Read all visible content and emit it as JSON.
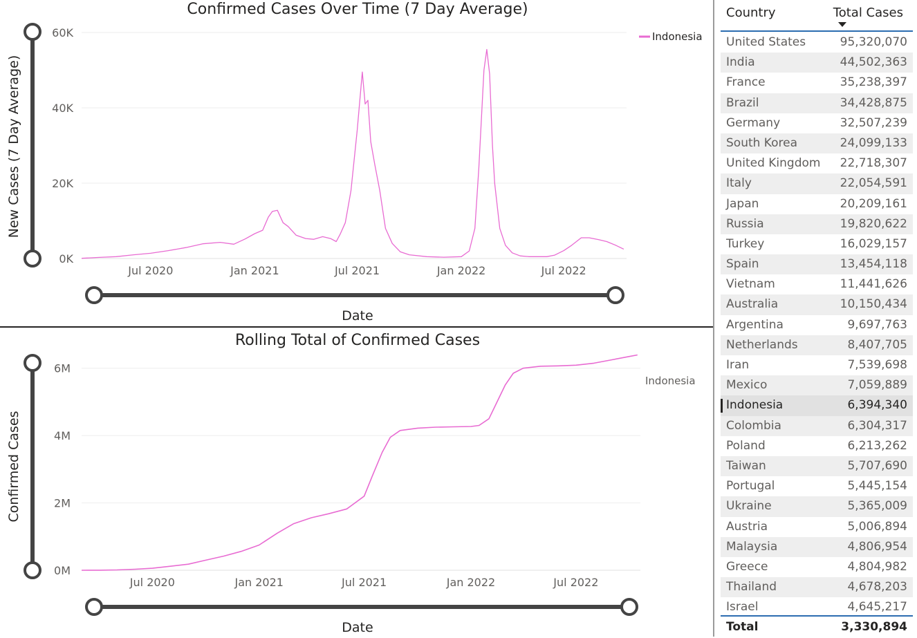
{
  "chart_data": [
    {
      "type": "line",
      "title": "Confirmed Cases Over Time (7 Day Average)",
      "xlabel": "Date",
      "ylabel": "New Cases (7 Day Average)",
      "x_ticks": [
        "Jul 2020",
        "Jan 2021",
        "Jul 2021",
        "Jan 2022",
        "Jul 2022"
      ],
      "y_ticks": [
        "0K",
        "20K",
        "40K",
        "60K"
      ],
      "ylim": [
        0,
        60000
      ],
      "xlim": [
        "2020-03-01",
        "2022-10-20"
      ],
      "legend": {
        "position": "top-right",
        "entries": [
          "Indonesia"
        ]
      },
      "grid": true,
      "series": [
        {
          "name": "Indonesia",
          "color": "#e86bd2",
          "x": [
            "2020-03-01",
            "2020-04-01",
            "2020-05-01",
            "2020-06-01",
            "2020-07-01",
            "2020-08-01",
            "2020-09-01",
            "2020-10-01",
            "2020-11-01",
            "2020-11-25",
            "2020-12-15",
            "2021-01-01",
            "2021-01-15",
            "2021-01-25",
            "2021-02-01",
            "2021-02-10",
            "2021-02-20",
            "2021-03-01",
            "2021-03-15",
            "2021-04-01",
            "2021-04-15",
            "2021-05-01",
            "2021-05-15",
            "2021-05-25",
            "2021-06-01",
            "2021-06-10",
            "2021-06-20",
            "2021-07-01",
            "2021-07-10",
            "2021-07-15",
            "2021-07-20",
            "2021-07-25",
            "2021-08-01",
            "2021-08-10",
            "2021-08-20",
            "2021-09-01",
            "2021-09-15",
            "2021-10-01",
            "2021-11-01",
            "2021-12-01",
            "2022-01-01",
            "2022-01-15",
            "2022-01-25",
            "2022-02-01",
            "2022-02-10",
            "2022-02-15",
            "2022-02-20",
            "2022-02-25",
            "2022-03-01",
            "2022-03-10",
            "2022-03-20",
            "2022-04-01",
            "2022-04-15",
            "2022-05-01",
            "2022-06-01",
            "2022-06-15",
            "2022-07-01",
            "2022-07-15",
            "2022-08-01",
            "2022-08-15",
            "2022-09-01",
            "2022-09-15",
            "2022-10-01",
            "2022-10-15"
          ],
          "values": [
            50,
            300,
            500,
            1000,
            1400,
            2100,
            2900,
            3900,
            4300,
            3800,
            5200,
            6600,
            7500,
            11000,
            12500,
            12800,
            9500,
            8500,
            6200,
            5300,
            5100,
            5800,
            5300,
            4500,
            6500,
            9500,
            18000,
            34000,
            49500,
            41000,
            42000,
            31000,
            25000,
            18000,
            8000,
            4000,
            1800,
            1000,
            500,
            350,
            500,
            2000,
            8000,
            24000,
            50000,
            55500,
            49000,
            30000,
            20000,
            8000,
            3500,
            1500,
            700,
            500,
            500,
            900,
            2100,
            3500,
            5500,
            5500,
            5000,
            4500,
            3500,
            2500
          ]
        }
      ]
    },
    {
      "type": "line",
      "title": "Rolling Total of Confirmed Cases",
      "xlabel": "Date",
      "ylabel": "Confirmed Cases",
      "x_ticks": [
        "Jul 2020",
        "Jan 2021",
        "Jul 2021",
        "Jan 2022",
        "Jul 2022"
      ],
      "y_ticks": [
        "0M",
        "2M",
        "4M",
        "6M"
      ],
      "ylim": [
        0,
        7000000
      ],
      "xlim": [
        "2020-03-01",
        "2022-10-20"
      ],
      "legend": {
        "position": "top-right",
        "entries": [
          "Indonesia"
        ]
      },
      "grid": true,
      "series": [
        {
          "name": "Indonesia",
          "color": "#e86bd2",
          "x": [
            "2020-03-01",
            "2020-04-01",
            "2020-05-01",
            "2020-06-01",
            "2020-07-01",
            "2020-08-01",
            "2020-09-01",
            "2020-10-01",
            "2020-11-01",
            "2020-12-01",
            "2021-01-01",
            "2021-02-01",
            "2021-03-01",
            "2021-04-01",
            "2021-05-01",
            "2021-06-01",
            "2021-07-01",
            "2021-07-15",
            "2021-08-01",
            "2021-08-15",
            "2021-09-01",
            "2021-10-01",
            "2021-11-01",
            "2021-12-01",
            "2022-01-01",
            "2022-01-15",
            "2022-02-01",
            "2022-02-15",
            "2022-03-01",
            "2022-03-15",
            "2022-04-01",
            "2022-05-01",
            "2022-06-01",
            "2022-07-01",
            "2022-08-01",
            "2022-09-01",
            "2022-10-01",
            "2022-10-15"
          ],
          "values": [
            0,
            2000,
            10000,
            30000,
            60000,
            120000,
            180000,
            300000,
            420000,
            560000,
            750000,
            1100000,
            1380000,
            1560000,
            1680000,
            1820000,
            2200000,
            2800000,
            3500000,
            3950000,
            4150000,
            4220000,
            4250000,
            4260000,
            4270000,
            4300000,
            4500000,
            5000000,
            5500000,
            5850000,
            6000000,
            6060000,
            6070000,
            6090000,
            6150000,
            6250000,
            6350000,
            6394340
          ]
        }
      ]
    }
  ],
  "table": {
    "columns": [
      "Country",
      "Total Cases"
    ],
    "rows": [
      {
        "country": "United States",
        "total": "95,320,070"
      },
      {
        "country": "India",
        "total": "44,502,363"
      },
      {
        "country": "France",
        "total": "35,238,397"
      },
      {
        "country": "Brazil",
        "total": "34,428,875"
      },
      {
        "country": "Germany",
        "total": "32,507,239"
      },
      {
        "country": "South Korea",
        "total": "24,099,133"
      },
      {
        "country": "United Kingdom",
        "total": "22,718,307"
      },
      {
        "country": "Italy",
        "total": "22,054,591"
      },
      {
        "country": "Japan",
        "total": "20,209,161"
      },
      {
        "country": "Russia",
        "total": "19,820,622"
      },
      {
        "country": "Turkey",
        "total": "16,029,157"
      },
      {
        "country": "Spain",
        "total": "13,454,118"
      },
      {
        "country": "Vietnam",
        "total": "11,441,626"
      },
      {
        "country": "Australia",
        "total": "10,150,434"
      },
      {
        "country": "Argentina",
        "total": "9,697,763"
      },
      {
        "country": "Netherlands",
        "total": "8,407,705"
      },
      {
        "country": "Iran",
        "total": "7,539,698"
      },
      {
        "country": "Mexico",
        "total": "7,059,889"
      },
      {
        "country": "Indonesia",
        "total": "6,394,340",
        "selected": true
      },
      {
        "country": "Colombia",
        "total": "6,304,317"
      },
      {
        "country": "Poland",
        "total": "6,213,262"
      },
      {
        "country": "Taiwan",
        "total": "5,707,690"
      },
      {
        "country": "Portugal",
        "total": "5,445,154"
      },
      {
        "country": "Ukraine",
        "total": "5,365,009"
      },
      {
        "country": "Austria",
        "total": "5,006,894"
      },
      {
        "country": "Malaysia",
        "total": "4,806,954"
      },
      {
        "country": "Greece",
        "total": "4,804,982"
      },
      {
        "country": "Thailand",
        "total": "4,678,203"
      },
      {
        "country": "Israel",
        "total": "4,645,217"
      }
    ],
    "total_label": "Total",
    "total_value": "3,330,894",
    "sort": "descending"
  }
}
